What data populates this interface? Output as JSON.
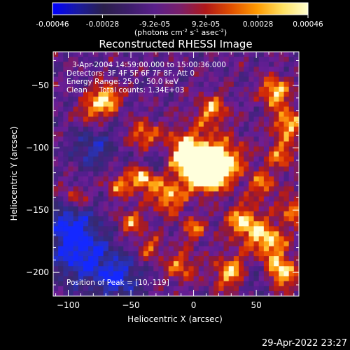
{
  "colorbar": {
    "ticks": [
      "-0.00046",
      "-0.00028",
      "-9.2e-05",
      "9.2e-05",
      "0.00028",
      "0.00046"
    ],
    "units_main": "(photons cm",
    "units_exp1": "-2",
    "units_mid": " s",
    "units_exp2": "-1",
    "units_end": " asec",
    "units_exp3": "-2",
    "units_close": ")",
    "colors": [
      "#0000ff",
      "#1a1aa0",
      "#2a1f4a",
      "#3d1d6b",
      "#5a1f8a",
      "#7a1f6a",
      "#b01818",
      "#e05000",
      "#ff9a00",
      "#ffe060",
      "#ffffd0"
    ]
  },
  "plot": {
    "title": "Reconstructed RHESSI Image",
    "info_lines": [
      "3-Apr-2004 14:59:00.000 to 15:00:36.000",
      "Detectors: 3F 4F 5F 6F 7F 8F, Att 0",
      "Energy Range: 25.0 - 50.0 keV",
      "Clean     Total counts: 1.34E+03"
    ],
    "peak_label": "Position of Peak = [10,-119]",
    "timestamp": "29-Apr-2022 23:27"
  },
  "chart_data": {
    "type": "heatmap",
    "title": "Reconstructed RHESSI Image",
    "xlabel": "Heliocentric X (arcsec)",
    "ylabel": "Heliocentric Y (arcsec)",
    "xlim": [
      -112,
      84
    ],
    "ylim": [
      -219,
      -23
    ],
    "xticks": [
      -100,
      -50,
      0,
      50
    ],
    "yticks": [
      -50,
      -100,
      -150,
      -200
    ],
    "color_range": [
      -0.00046,
      0.00046
    ],
    "peak": [
      10,
      -119
    ],
    "grid": false,
    "legend": "colorbar-top"
  }
}
